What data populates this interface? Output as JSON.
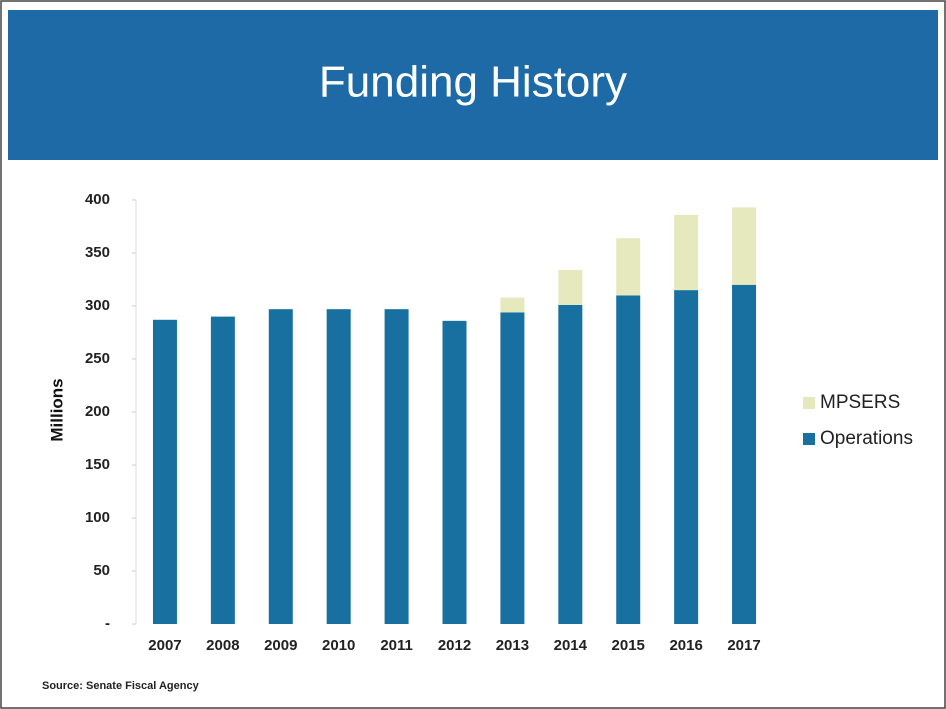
{
  "chart_data": {
    "type": "stacked_bar",
    "title": "Funding History",
    "y_label": "Millions",
    "source": "Source: Senate Fiscal Agency",
    "categories": [
      "2007",
      "2008",
      "2009",
      "2010",
      "2011",
      "2012",
      "2013",
      "2014",
      "2015",
      "2016",
      "2017"
    ],
    "series": [
      {
        "name": "Operations",
        "color": "#17709f",
        "values": [
          287,
          290,
          297,
          297,
          297,
          286,
          294,
          301,
          310,
          315,
          320
        ]
      },
      {
        "name": "MPSERS",
        "color": "#e6e9bd",
        "values": [
          0,
          0,
          0,
          0,
          0,
          0,
          14,
          33,
          54,
          71,
          73
        ]
      }
    ],
    "ylim": [
      0,
      400
    ],
    "yticks": [
      {
        "value": 0,
        "label": "-"
      },
      50,
      100,
      150,
      200,
      250,
      300,
      350,
      400
    ],
    "legend": "right"
  }
}
